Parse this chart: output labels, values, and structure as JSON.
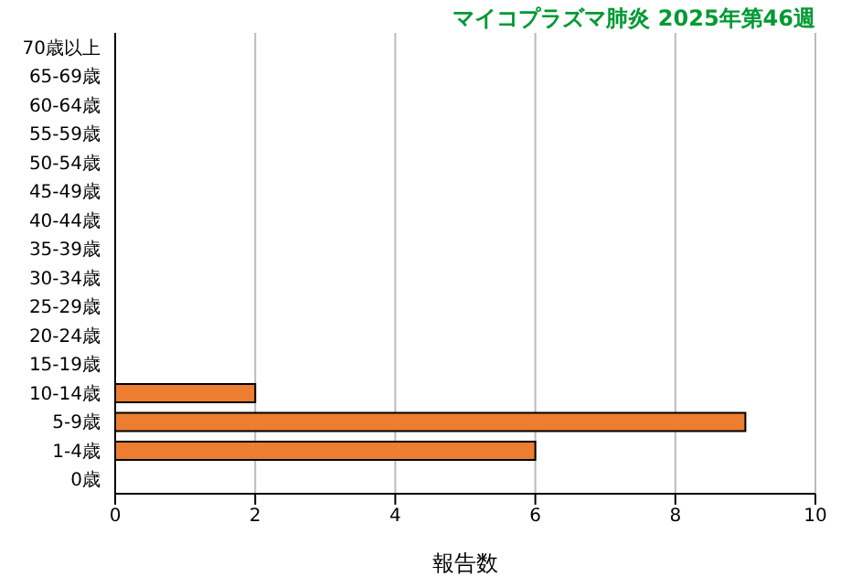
{
  "chart_data": {
    "type": "bar",
    "orientation": "horizontal",
    "title": "マイコプラズマ肺炎 2025年第46週",
    "xlabel": "報告数",
    "categories": [
      "70歳以上",
      "65-69歳",
      "60-64歳",
      "55-59歳",
      "50-54歳",
      "45-49歳",
      "40-44歳",
      "35-39歳",
      "30-34歳",
      "25-29歳",
      "20-24歳",
      "15-19歳",
      "10-14歳",
      "5-9歳",
      "1-4歳",
      "0歳"
    ],
    "values": [
      0,
      0,
      0,
      0,
      0,
      0,
      0,
      0,
      0,
      0,
      0,
      0,
      2,
      9,
      6,
      0
    ],
    "color": "#ed7d31",
    "xlim": [
      0,
      10
    ],
    "xticks": [
      0,
      2,
      4,
      6,
      8,
      10
    ],
    "grid": "x"
  }
}
